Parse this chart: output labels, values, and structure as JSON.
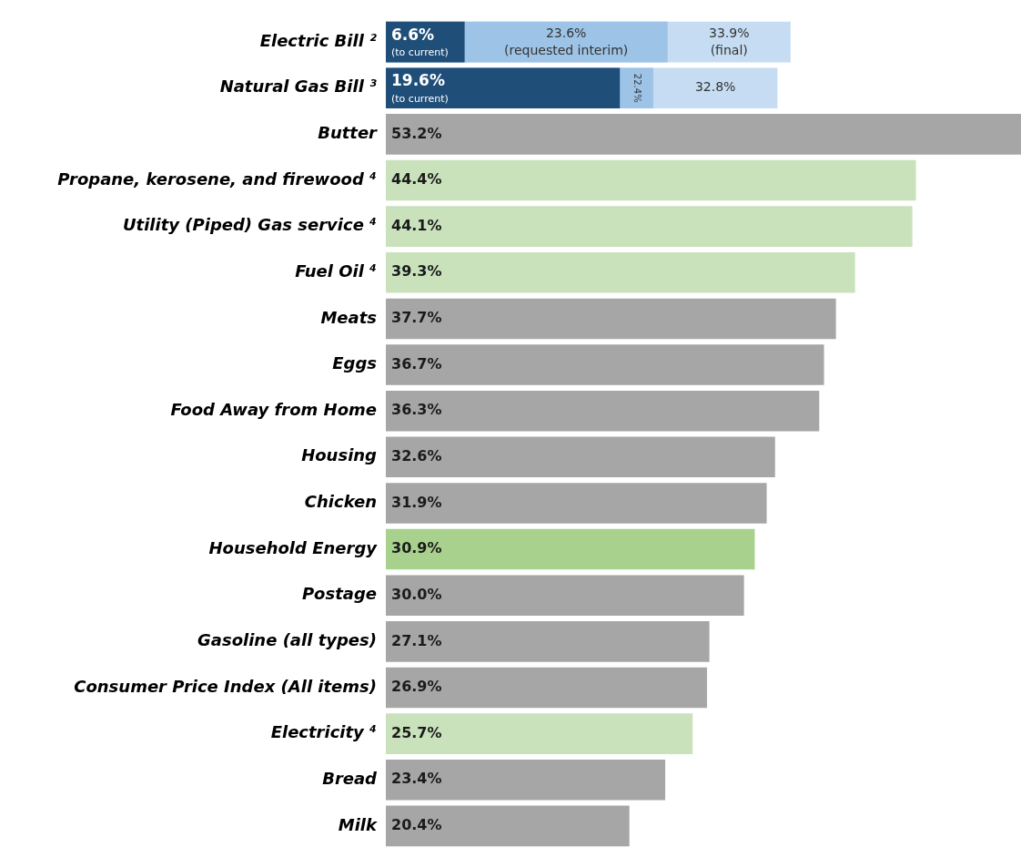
{
  "chart_data": {
    "type": "bar",
    "orientation": "horizontal",
    "grid": false,
    "legend": false,
    "tick_labels": "y",
    "categories": [
      "Electric Bill ²",
      "Natural Gas Bill ³",
      "Butter",
      "Propane, kerosene, and firewood ⁴",
      "Utility (Piped) Gas service ⁴",
      "Fuel Oil ⁴",
      "Meats",
      "Eggs",
      "Food Away from Home",
      "Housing",
      "Chicken",
      "Household Energy",
      "Postage",
      "Gasoline (all types)",
      "Consumer Price Index (All items)",
      "Electricity ⁴",
      "Bread",
      "Milk"
    ],
    "series": [
      {
        "color": "#c5dcf2",
        "values": [
          33.9,
          32.8,
          null,
          null,
          null,
          null,
          null,
          null,
          null,
          null,
          null,
          null,
          null,
          null,
          null,
          null,
          null,
          null
        ],
        "value_labels": [
          "33.9%\n(final)",
          "32.8%",
          null,
          null,
          null,
          null,
          null,
          null,
          null,
          null,
          null,
          null,
          null,
          null,
          null,
          null,
          null,
          null
        ]
      },
      {
        "color": "#9dc3e6",
        "values": [
          23.6,
          22.4,
          null,
          null,
          null,
          null,
          null,
          null,
          null,
          null,
          null,
          null,
          null,
          null,
          null,
          null,
          null,
          null
        ],
        "value_labels": [
          "23.6%\n(requested interim)",
          "22.4%",
          null,
          null,
          null,
          null,
          null,
          null,
          null,
          null,
          null,
          null,
          null,
          null,
          null,
          null,
          null,
          null
        ]
      },
      {
        "colors": [
          "#1f4e79",
          "#1f4e79",
          "#a6a6a6",
          "#c9e2bc",
          "#c9e2bc",
          "#c9e2bc",
          "#a6a6a6",
          "#a6a6a6",
          "#a6a6a6",
          "#a6a6a6",
          "#a6a6a6",
          "#a9d18e",
          "#a6a6a6",
          "#a6a6a6",
          "#a6a6a6",
          "#c9e2bc",
          "#a6a6a6",
          "#a6a6a6"
        ],
        "values": [
          6.6,
          19.6,
          53.2,
          44.4,
          44.1,
          39.3,
          37.7,
          36.7,
          36.3,
          32.6,
          31.9,
          30.9,
          30.0,
          27.1,
          26.9,
          25.7,
          23.4,
          20.4
        ],
        "value_labels": [
          "6.6%\n(to current)",
          "19.6%\n(to current)",
          "53.2%",
          "44.4%",
          "44.1%",
          "39.3%",
          "37.7%",
          "36.7%",
          "36.3%",
          "32.6%",
          "31.9%",
          "30.9%",
          "30.0%",
          "27.1%",
          "26.9%",
          "25.7%",
          "23.4%",
          "20.4%"
        ]
      }
    ]
  }
}
